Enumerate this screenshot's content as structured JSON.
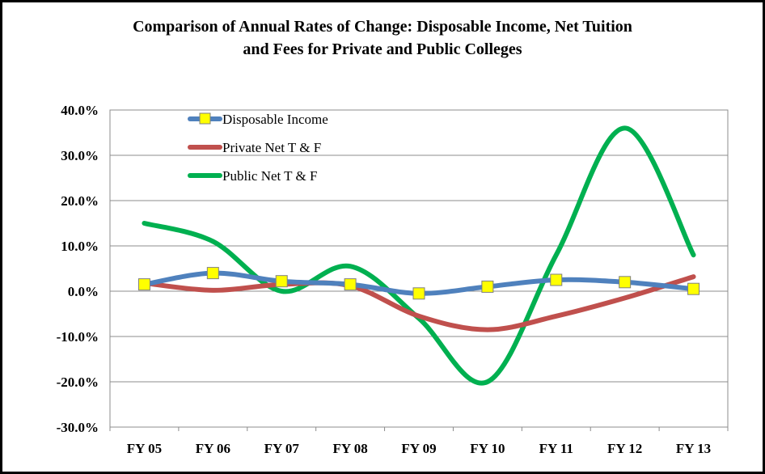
{
  "chart_data": {
    "type": "line",
    "title_line1": "Comparison of Annual Rates of Change: Disposable Income, Net Tuition",
    "title_line2": "and Fees for Private and Public Colleges",
    "categories": [
      "FY 05",
      "FY 06",
      "FY 07",
      "FY 08",
      "FY 09",
      "FY 10",
      "FY 11",
      "FY 12",
      "FY 13"
    ],
    "ylim": [
      -30,
      40
    ],
    "yticks": [
      40,
      30,
      20,
      10,
      0,
      -10,
      -20,
      -30
    ],
    "ytick_labels": [
      "40.0%",
      "30.0%",
      "20.0%",
      "10.0%",
      "0.0%",
      "-10.0%",
      "-20.0%",
      "-30.0%"
    ],
    "grid": true,
    "legend_position": "top-left",
    "series": [
      {
        "name": "Disposable Income",
        "color": "#4f81bd",
        "marker": "square-yellow",
        "values": [
          1.5,
          4.0,
          2.2,
          1.5,
          -0.5,
          1.0,
          2.5,
          2.0,
          0.5
        ]
      },
      {
        "name": "Private Net T & F",
        "color": "#c0504d",
        "marker": "none",
        "values": [
          1.8,
          0.2,
          1.5,
          1.2,
          -5.5,
          -8.5,
          -5.5,
          -1.5,
          3.2
        ]
      },
      {
        "name": "Public Net T & F",
        "color": "#00b050",
        "marker": "none",
        "values": [
          15.0,
          11.0,
          0.0,
          5.5,
          -6.0,
          -20.0,
          8.0,
          36.0,
          8.0
        ]
      }
    ]
  }
}
